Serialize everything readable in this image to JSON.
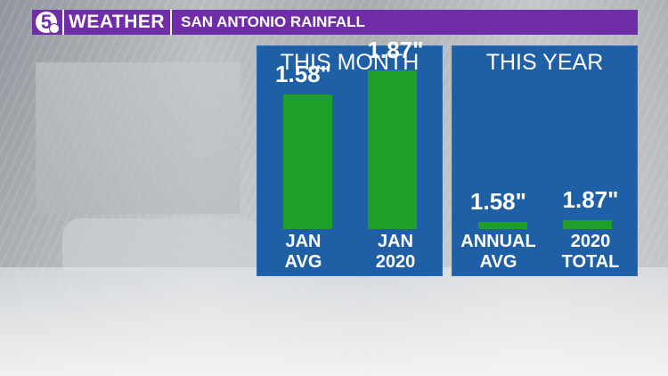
{
  "header": {
    "logo_number": "5",
    "brand": "WEATHER",
    "title": "SAN ANTONIO RAINFALL",
    "brand_color": "#6f2da8"
  },
  "panels": [
    {
      "title": "THIS MONTH",
      "columns": [
        {
          "value_label": "1.58\"",
          "label_line1": "JAN",
          "label_line2": "AVG"
        },
        {
          "value_label": "1.87\"",
          "label_line1": "JAN",
          "label_line2": "2020"
        }
      ]
    },
    {
      "title": "THIS YEAR",
      "columns": [
        {
          "value_label": "1.58\"",
          "label_line1": "ANNUAL",
          "label_line2": "AVG"
        },
        {
          "value_label": "1.87\"",
          "label_line1": "2020",
          "label_line2": "TOTAL"
        }
      ]
    }
  ],
  "chart_data": [
    {
      "type": "bar",
      "title": "THIS MONTH",
      "categories": [
        "JAN AVG",
        "JAN 2020"
      ],
      "values": [
        1.58,
        1.87
      ],
      "units": "\"",
      "ylim": [
        0,
        2.2
      ],
      "bar_color": "#1f9f2a",
      "panel_color": "#1f5fa6"
    },
    {
      "type": "bar",
      "title": "THIS YEAR",
      "categories": [
        "ANNUAL AVG",
        "2020 TOTAL"
      ],
      "values": [
        1.58,
        1.87
      ],
      "units": "\"",
      "ylim": [
        0,
        40
      ],
      "bar_color": "#1f9f2a",
      "panel_color": "#1f5fa6"
    }
  ]
}
